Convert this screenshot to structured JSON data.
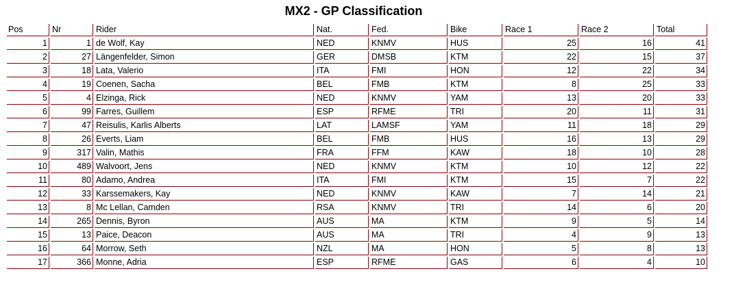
{
  "title": "MX2 - GP Classification",
  "columns": [
    "Pos",
    "Nr",
    "Rider",
    "Nat.",
    "Fed.",
    "Bike",
    "Race 1",
    "Race 2",
    "Total"
  ],
  "rows": [
    [
      "1",
      "1",
      "de Wolf, Kay",
      "NED",
      "KNMV",
      "HUS",
      "25",
      "16",
      "41"
    ],
    [
      "2",
      "27",
      "Längenfelder, Simon",
      "GER",
      "DMSB",
      "KTM",
      "22",
      "15",
      "37"
    ],
    [
      "3",
      "18",
      "Lata, Valerio",
      "ITA",
      "FMI",
      "HON",
      "12",
      "22",
      "34"
    ],
    [
      "4",
      "19",
      "Coenen, Sacha",
      "BEL",
      "FMB",
      "KTM",
      "8",
      "25",
      "33"
    ],
    [
      "5",
      "4",
      "Elzinga, Rick",
      "NED",
      "KNMV",
      "YAM",
      "13",
      "20",
      "33"
    ],
    [
      "6",
      "99",
      "Farres, Guillem",
      "ESP",
      "RFME",
      "TRI",
      "20",
      "11",
      "31"
    ],
    [
      "7",
      "47",
      "Reisulis, Karlis Alberts",
      "LAT",
      "LAMSF",
      "YAM",
      "11",
      "18",
      "29"
    ],
    [
      "8",
      "26",
      "Everts, Liam",
      "BEL",
      "FMB",
      "HUS",
      "16",
      "13",
      "29"
    ],
    [
      "9",
      "317",
      "Valin, Mathis",
      "FRA",
      "FFM",
      "KAW",
      "18",
      "10",
      "28"
    ],
    [
      "10",
      "489",
      "Walvoort, Jens",
      "NED",
      "KNMV",
      "KTM",
      "10",
      "12",
      "22"
    ],
    [
      "11",
      "80",
      "Adamo, Andrea",
      "ITA",
      "FMI",
      "KTM",
      "15",
      "7",
      "22"
    ],
    [
      "12",
      "33",
      "Karssemakers, Kay",
      "NED",
      "KNMV",
      "KAW",
      "7",
      "14",
      "21"
    ],
    [
      "13",
      "8",
      "Mc Lellan, Camden",
      "RSA",
      "KNMV",
      "TRI",
      "14",
      "6",
      "20"
    ],
    [
      "14",
      "265",
      "Dennis, Byron",
      "AUS",
      "MA",
      "KTM",
      "9",
      "5",
      "14"
    ],
    [
      "15",
      "13",
      "Paice, Deacon",
      "AUS",
      "MA",
      "TRI",
      "4",
      "9",
      "13"
    ],
    [
      "16",
      "64",
      "Morrow, Seth",
      "NZL",
      "MA",
      "HON",
      "5",
      "8",
      "13"
    ],
    [
      "17",
      "366",
      "Monne, Adria",
      "ESP",
      "RFME",
      "GAS",
      "6",
      "4",
      "10"
    ]
  ],
  "colors": {
    "border": "#8b0000"
  }
}
